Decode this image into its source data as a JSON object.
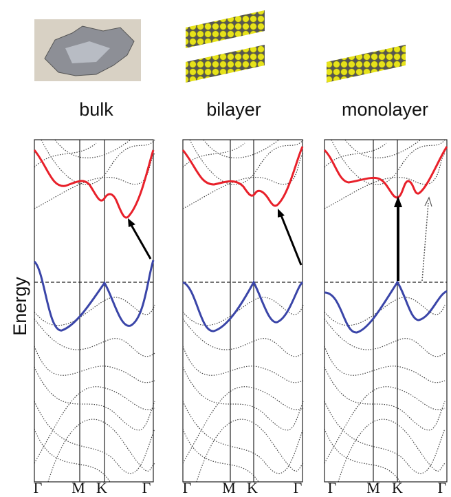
{
  "y_axis_label": "Energy",
  "panels": [
    {
      "label": "bulk",
      "kpoints": [
        "Γ",
        "M",
        "K",
        "Γ"
      ]
    },
    {
      "label": "bilayer",
      "kpoints": [
        "Γ",
        "M",
        "K",
        "Γ"
      ]
    },
    {
      "label": "monolayer",
      "kpoints": [
        "Γ",
        "M",
        "K",
        "Γ"
      ]
    }
  ]
}
